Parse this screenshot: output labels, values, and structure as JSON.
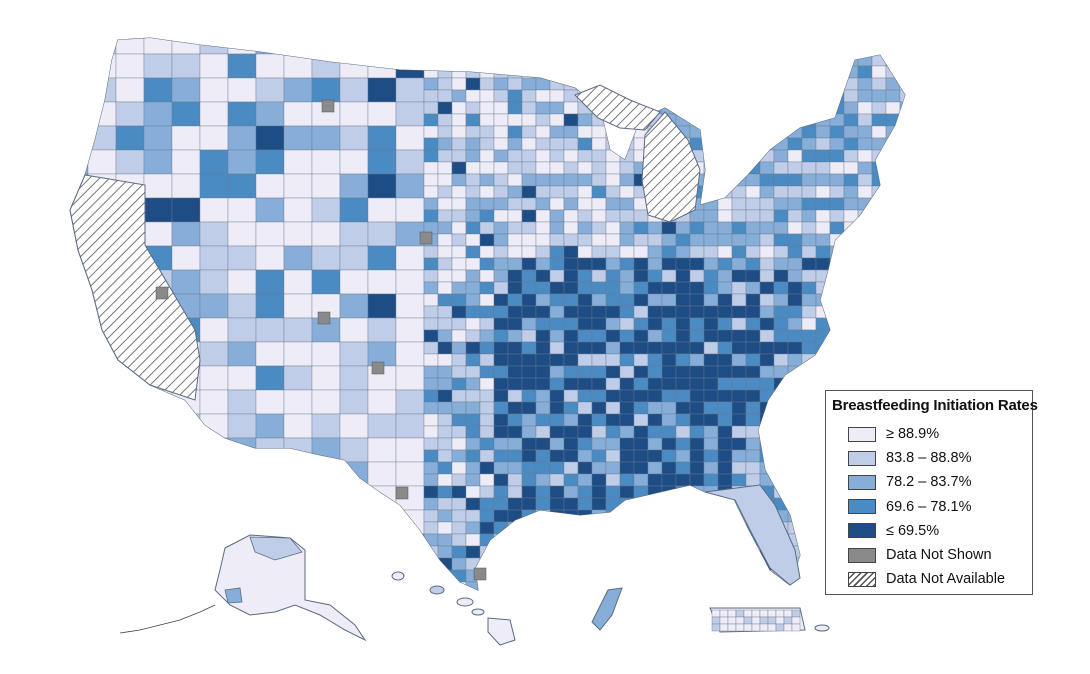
{
  "legend": {
    "title": "Breastfeeding Initiation Rates",
    "items": [
      {
        "label": "≥ 88.9%",
        "color": "#eeedf7",
        "pattern": "solid"
      },
      {
        "label": "83.8 – 88.8%",
        "color": "#bfcde8",
        "pattern": "solid"
      },
      {
        "label": "78.2 – 83.7%",
        "color": "#86aed8",
        "pattern": "solid"
      },
      {
        "label": "69.6 – 78.1%",
        "color": "#4a8bc4",
        "pattern": "solid"
      },
      {
        "label": "≤ 69.5%",
        "color": "#1e4d86",
        "pattern": "solid"
      },
      {
        "label": "Data Not Shown",
        "color": "#8a8a8a",
        "pattern": "solid"
      },
      {
        "label": "Data Not Available",
        "color": "#ffffff",
        "pattern": "hatch"
      }
    ]
  },
  "colors": {
    "outline": "#5a6a80",
    "hatch": "#555555"
  }
}
